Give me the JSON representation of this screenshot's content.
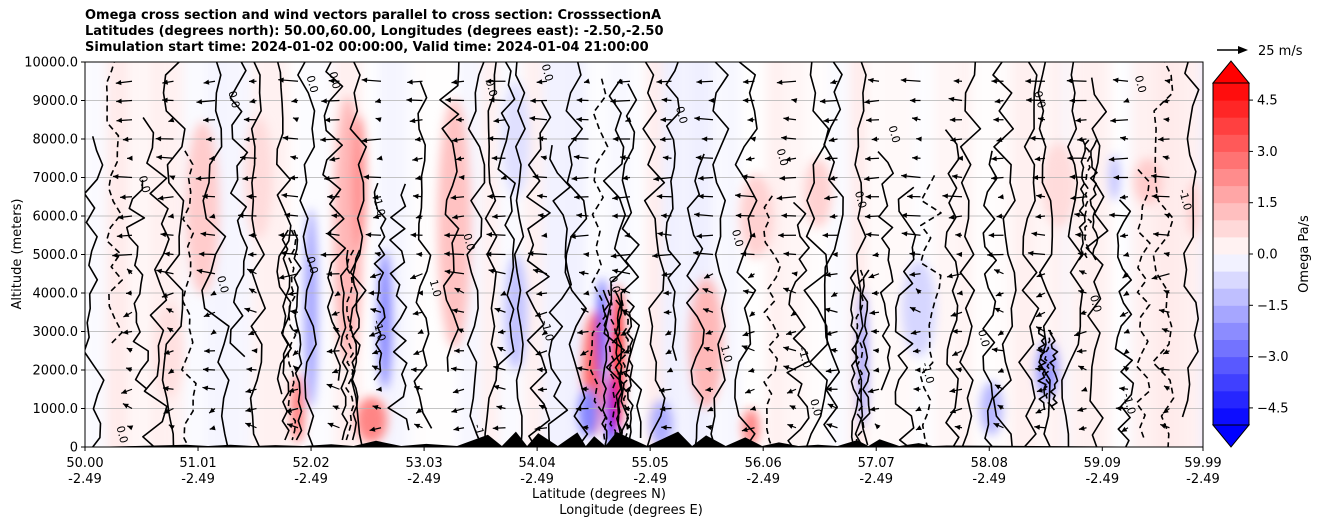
{
  "chart_data": {
    "type": "heatmap",
    "title_lines": [
      "Omega cross section and wind vectors parallel to cross section: CrosssectionA",
      "Latitudes (degrees north): 50.00,60.00, Longitudes (degrees east): -2.50,-2.50",
      "Simulation start time: 2024-01-02 00:00:00, Valid time: 2024-01-04 21:00:00"
    ],
    "ylabel": "Altitude (meters)",
    "xlabel_lines": [
      "Latitude (degrees N)",
      "Longitude (degrees E)"
    ],
    "ylim": [
      0,
      10000
    ],
    "xlim": [
      50.0,
      59.99
    ],
    "y_ticks": [
      "0",
      "1000.0",
      "2000.0",
      "3000.0",
      "4000.0",
      "5000.0",
      "6000.0",
      "7000.0",
      "8000.0",
      "9000.0",
      "10000.0"
    ],
    "y_tick_values": [
      0,
      1000,
      2000,
      3000,
      4000,
      5000,
      6000,
      7000,
      8000,
      9000,
      10000
    ],
    "x_ticks": [
      {
        "lat": "50.00",
        "lon": "-2.49"
      },
      {
        "lat": "51.01",
        "lon": "-2.49"
      },
      {
        "lat": "52.02",
        "lon": "-2.49"
      },
      {
        "lat": "53.03",
        "lon": "-2.49"
      },
      {
        "lat": "54.04",
        "lon": "-2.49"
      },
      {
        "lat": "55.05",
        "lon": "-2.49"
      },
      {
        "lat": "56.06",
        "lon": "-2.49"
      },
      {
        "lat": "57.07",
        "lon": "-2.49"
      },
      {
        "lat": "58.08",
        "lon": "-2.49"
      },
      {
        "lat": "59.09",
        "lon": "-2.49"
      },
      {
        "lat": "59.99",
        "lon": "-2.49"
      }
    ],
    "x_tick_values": [
      50.0,
      51.01,
      52.02,
      53.03,
      54.04,
      55.05,
      56.06,
      57.07,
      58.08,
      59.09,
      59.99
    ],
    "colorbar": {
      "label": "Omega Pa/s",
      "ticks": [
        "4.5",
        "3.0",
        "1.5",
        "0.0",
        "−1.5",
        "−3.0",
        "−4.5"
      ],
      "tick_values": [
        4.5,
        3.0,
        1.5,
        0.0,
        -1.5,
        -3.0,
        -4.5
      ],
      "range": [
        -5,
        5
      ],
      "extend": "both"
    },
    "quiver_key": {
      "label": "25 m/s",
      "value": 25
    },
    "grid": true,
    "contour_labels": [
      {
        "text": "0.0",
        "lat": 51.3,
        "alt": 9000
      },
      {
        "text": "0.0",
        "lat": 52.0,
        "alt": 9400
      },
      {
        "text": "0.0",
        "lat": 52.2,
        "alt": 9500
      },
      {
        "text": "0.0",
        "lat": 53.6,
        "alt": 9300
      },
      {
        "text": "0.0",
        "lat": 54.1,
        "alt": 9700
      },
      {
        "text": "0.0",
        "lat": 55.3,
        "alt": 8600
      },
      {
        "text": "0.0",
        "lat": 56.2,
        "alt": 7500
      },
      {
        "text": "0.0",
        "lat": 56.9,
        "alt": 6400
      },
      {
        "text": "0.0",
        "lat": 57.2,
        "alt": 8100
      },
      {
        "text": "0.0",
        "lat": 58.5,
        "alt": 9000
      },
      {
        "text": "0.0",
        "lat": 59.4,
        "alt": 9400
      },
      {
        "text": "0.0",
        "lat": 50.5,
        "alt": 6800
      },
      {
        "text": "0.0",
        "lat": 51.2,
        "alt": 4200
      },
      {
        "text": "0.0",
        "lat": 52.0,
        "alt": 4700
      },
      {
        "text": "0.0",
        "lat": 53.4,
        "alt": 5300
      },
      {
        "text": "0.0",
        "lat": 54.7,
        "alt": 4200
      },
      {
        "text": "0.0",
        "lat": 55.8,
        "alt": 5400
      },
      {
        "text": "0.0",
        "lat": 58.0,
        "alt": 2800
      },
      {
        "text": "0.0",
        "lat": 59.0,
        "alt": 3700
      },
      {
        "text": "0.0",
        "lat": 56.5,
        "alt": 1000
      },
      {
        "text": "0.0",
        "lat": 50.3,
        "alt": 300
      },
      {
        "text": "1.0",
        "lat": 53.1,
        "alt": 4100
      },
      {
        "text": "1.0",
        "lat": 55.7,
        "alt": 2400
      },
      {
        "text": "1.0",
        "lat": 52.6,
        "alt": 6200
      },
      {
        "text": "-1.0",
        "lat": 52.6,
        "alt": 3000
      },
      {
        "text": "-1.0",
        "lat": 54.1,
        "alt": 3000
      },
      {
        "text": "-1.0",
        "lat": 56.4,
        "alt": 2300
      },
      {
        "text": "-1.0",
        "lat": 57.5,
        "alt": 1900
      },
      {
        "text": "-1.0",
        "lat": 59.8,
        "alt": 6400
      },
      {
        "text": "-1.0",
        "lat": 53.5,
        "alt": 300
      },
      {
        "text": "-1.0",
        "lat": 59.3,
        "alt": 1100
      }
    ],
    "omega_features": [
      {
        "lat": 51.05,
        "alt": 6200,
        "w": 0.3,
        "h": 4500,
        "v": 1.0
      },
      {
        "lat": 51.55,
        "alt": 7000,
        "w": 0.25,
        "h": 3200,
        "v": 0.7
      },
      {
        "lat": 52.02,
        "alt": 3600,
        "w": 0.12,
        "h": 5200,
        "v": -1.8
      },
      {
        "lat": 51.9,
        "alt": 1000,
        "w": 0.12,
        "h": 1800,
        "v": 2.6
      },
      {
        "lat": 52.35,
        "alt": 5600,
        "w": 0.25,
        "h": 7000,
        "v": 1.4
      },
      {
        "lat": 52.45,
        "alt": 6800,
        "w": 0.12,
        "h": 3600,
        "v": 2.2
      },
      {
        "lat": 52.68,
        "alt": 3300,
        "w": 0.12,
        "h": 3600,
        "v": -2.4
      },
      {
        "lat": 52.56,
        "alt": 700,
        "w": 0.28,
        "h": 1200,
        "v": 2.4
      },
      {
        "lat": 53.3,
        "alt": 5800,
        "w": 0.3,
        "h": 6500,
        "v": 1.2
      },
      {
        "lat": 53.85,
        "alt": 3500,
        "w": 0.2,
        "h": 3000,
        "v": -1.2
      },
      {
        "lat": 54.55,
        "alt": 1900,
        "w": 0.2,
        "h": 3200,
        "v": 3.0
      },
      {
        "lat": 54.62,
        "alt": 3000,
        "w": 0.08,
        "h": 2800,
        "v": -3.6
      },
      {
        "lat": 54.7,
        "alt": 900,
        "w": 0.08,
        "h": 1800,
        "v": -5.5
      },
      {
        "lat": 54.76,
        "alt": 2300,
        "w": 0.1,
        "h": 3800,
        "v": 4.6
      },
      {
        "lat": 54.5,
        "alt": 900,
        "w": 0.18,
        "h": 1300,
        "v": -2.4
      },
      {
        "lat": 55.15,
        "alt": 600,
        "w": 0.2,
        "h": 1200,
        "v": -1.6
      },
      {
        "lat": 55.55,
        "alt": 2700,
        "w": 0.3,
        "h": 3400,
        "v": 1.4
      },
      {
        "lat": 55.95,
        "alt": 500,
        "w": 0.15,
        "h": 1000,
        "v": 2.4
      },
      {
        "lat": 56.55,
        "alt": 6600,
        "w": 0.25,
        "h": 1800,
        "v": 0.9
      },
      {
        "lat": 56.95,
        "alt": 2300,
        "w": 0.08,
        "h": 3600,
        "v": -2.0
      },
      {
        "lat": 58.6,
        "alt": 2000,
        "w": 0.2,
        "h": 1500,
        "v": -2.0
      },
      {
        "lat": 58.1,
        "alt": 1000,
        "w": 0.2,
        "h": 1400,
        "v": -1.4
      },
      {
        "lat": 59.5,
        "alt": 6900,
        "w": 0.25,
        "h": 1200,
        "v": 1.0
      },
      {
        "lat": 59.2,
        "alt": 7000,
        "w": 0.1,
        "h": 1200,
        "v": -1.2
      },
      {
        "lat": 59.9,
        "alt": 6200,
        "w": 0.1,
        "h": 1500,
        "v": 1.0
      },
      {
        "lat": 57.45,
        "alt": 3600,
        "w": 0.3,
        "h": 2500,
        "v": -0.8
      },
      {
        "lat": 50.75,
        "alt": 2500,
        "w": 0.25,
        "h": 2500,
        "v": 0.6
      },
      {
        "lat": 53.85,
        "alt": 8000,
        "w": 0.25,
        "h": 3000,
        "v": -0.6
      },
      {
        "lat": 56.0,
        "alt": 6000,
        "w": 0.3,
        "h": 2200,
        "v": 0.9
      },
      {
        "lat": 58.7,
        "alt": 6800,
        "w": 0.3,
        "h": 2200,
        "v": 0.7
      }
    ],
    "terrain": [
      {
        "lat": 50.9,
        "alt": 60
      },
      {
        "lat": 51.3,
        "alt": 60
      },
      {
        "lat": 51.7,
        "alt": 50
      },
      {
        "lat": 52.2,
        "alt": 70
      },
      {
        "lat": 52.6,
        "alt": 160
      },
      {
        "lat": 53.05,
        "alt": 80
      },
      {
        "lat": 53.6,
        "alt": 320
      },
      {
        "lat": 53.85,
        "alt": 400
      },
      {
        "lat": 54.05,
        "alt": 360
      },
      {
        "lat": 54.4,
        "alt": 380
      },
      {
        "lat": 54.55,
        "alt": 280
      },
      {
        "lat": 54.75,
        "alt": 390
      },
      {
        "lat": 55.3,
        "alt": 400
      },
      {
        "lat": 55.55,
        "alt": 300
      },
      {
        "lat": 55.9,
        "alt": 250
      },
      {
        "lat": 56.2,
        "alt": 120
      },
      {
        "lat": 56.55,
        "alt": 60
      },
      {
        "lat": 56.9,
        "alt": 180
      },
      {
        "lat": 57.1,
        "alt": 200
      },
      {
        "lat": 57.45,
        "alt": 100
      },
      {
        "lat": 57.7,
        "alt": 40
      }
    ]
  }
}
